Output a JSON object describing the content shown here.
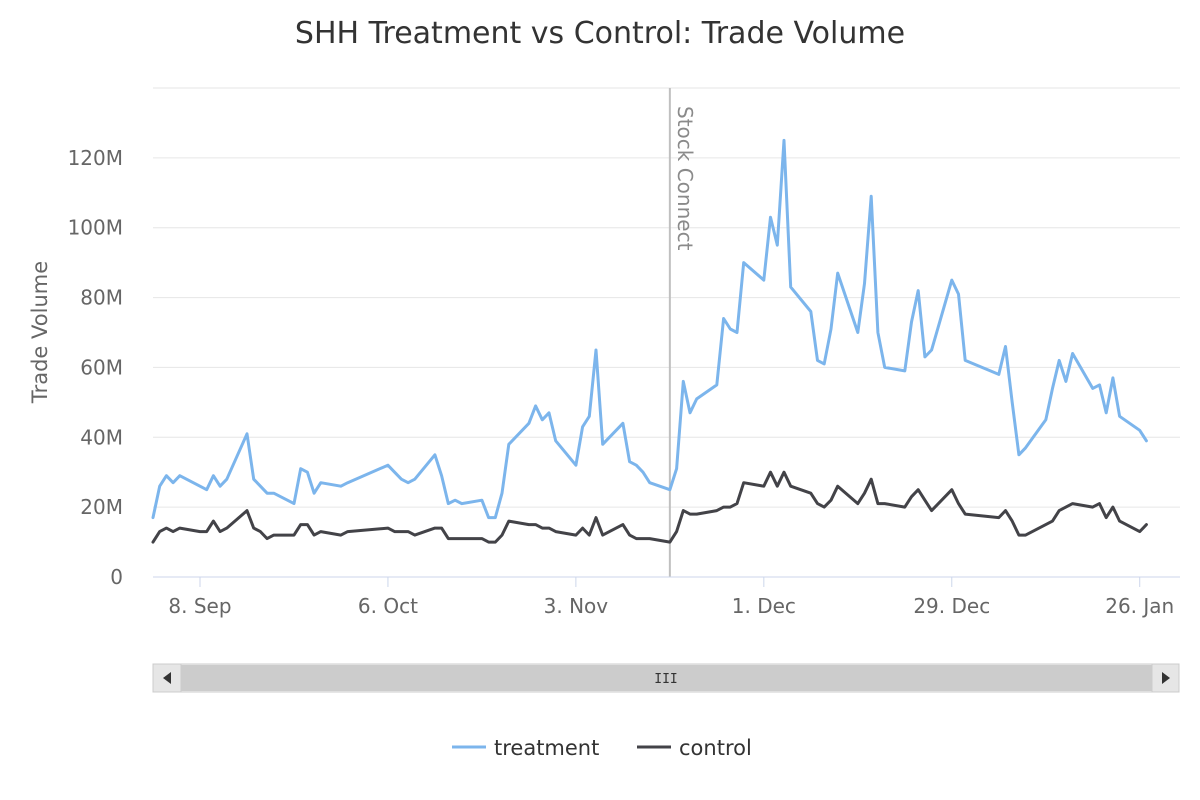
{
  "chart_data": {
    "type": "line",
    "title": "SHH Treatment vs Control: Trade Volume",
    "ylabel": "Trade Volume",
    "xlabel": "",
    "ylim": [
      0,
      140000000
    ],
    "xlim": [
      "2014-09-01",
      "2015-02-01"
    ],
    "y_ticks": [
      {
        "value": 0,
        "label": "0"
      },
      {
        "value": 20000000,
        "label": "20M"
      },
      {
        "value": 40000000,
        "label": "40M"
      },
      {
        "value": 60000000,
        "label": "60M"
      },
      {
        "value": 80000000,
        "label": "80M"
      },
      {
        "value": 100000000,
        "label": "100M"
      },
      {
        "value": 120000000,
        "label": "120M"
      }
    ],
    "x_ticks": [
      {
        "date": "2014-09-08",
        "label": "8. Sep"
      },
      {
        "date": "2014-10-06",
        "label": "6. Oct"
      },
      {
        "date": "2014-11-03",
        "label": "3. Nov"
      },
      {
        "date": "2014-12-01",
        "label": "1. Dec"
      },
      {
        "date": "2014-12-29",
        "label": "29. Dec"
      },
      {
        "date": "2015-01-26",
        "label": "26. Jan"
      }
    ],
    "plot_line": {
      "date": "2014-11-17",
      "label": "Stock Connect",
      "color": "#c0c0c0"
    },
    "grid": true,
    "legend_position": "bottom-center",
    "series": [
      {
        "name": "treatment",
        "color": "#7cb5ec",
        "points": [
          [
            "2014-09-01",
            17
          ],
          [
            "2014-09-02",
            26
          ],
          [
            "2014-09-03",
            29
          ],
          [
            "2014-09-04",
            27
          ],
          [
            "2014-09-05",
            29
          ],
          [
            "2014-09-08",
            26
          ],
          [
            "2014-09-09",
            25
          ],
          [
            "2014-09-10",
            29
          ],
          [
            "2014-09-11",
            26
          ],
          [
            "2014-09-12",
            28
          ],
          [
            "2014-09-15",
            41
          ],
          [
            "2014-09-16",
            28
          ],
          [
            "2014-09-17",
            26
          ],
          [
            "2014-09-18",
            24
          ],
          [
            "2014-09-19",
            24
          ],
          [
            "2014-09-22",
            21
          ],
          [
            "2014-09-23",
            31
          ],
          [
            "2014-09-24",
            30
          ],
          [
            "2014-09-25",
            24
          ],
          [
            "2014-09-26",
            27
          ],
          [
            "2014-09-29",
            26
          ],
          [
            "2014-09-30",
            27
          ],
          [
            "2014-10-06",
            32
          ],
          [
            "2014-10-07",
            30
          ],
          [
            "2014-10-08",
            28
          ],
          [
            "2014-10-09",
            27
          ],
          [
            "2014-10-10",
            28
          ],
          [
            "2014-10-13",
            35
          ],
          [
            "2014-10-14",
            29
          ],
          [
            "2014-10-15",
            21
          ],
          [
            "2014-10-16",
            22
          ],
          [
            "2014-10-17",
            21
          ],
          [
            "2014-10-20",
            22
          ],
          [
            "2014-10-21",
            17
          ],
          [
            "2014-10-22",
            17
          ],
          [
            "2014-10-23",
            24
          ],
          [
            "2014-10-24",
            38
          ],
          [
            "2014-10-27",
            44
          ],
          [
            "2014-10-28",
            49
          ],
          [
            "2014-10-29",
            45
          ],
          [
            "2014-10-30",
            47
          ],
          [
            "2014-10-31",
            39
          ],
          [
            "2014-11-03",
            32
          ],
          [
            "2014-11-04",
            43
          ],
          [
            "2014-11-05",
            46
          ],
          [
            "2014-11-06",
            65
          ],
          [
            "2014-11-07",
            38
          ],
          [
            "2014-11-10",
            44
          ],
          [
            "2014-11-11",
            33
          ],
          [
            "2014-11-12",
            32
          ],
          [
            "2014-11-13",
            30
          ],
          [
            "2014-11-14",
            27
          ],
          [
            "2014-11-17",
            25
          ],
          [
            "2014-11-18",
            31
          ],
          [
            "2014-11-19",
            56
          ],
          [
            "2014-11-20",
            47
          ],
          [
            "2014-11-21",
            51
          ],
          [
            "2014-11-24",
            55
          ],
          [
            "2014-11-25",
            74
          ],
          [
            "2014-11-26",
            71
          ],
          [
            "2014-11-27",
            70
          ],
          [
            "2014-11-28",
            90
          ],
          [
            "2014-12-01",
            85
          ],
          [
            "2014-12-02",
            103
          ],
          [
            "2014-12-03",
            95
          ],
          [
            "2014-12-04",
            125
          ],
          [
            "2014-12-05",
            83
          ],
          [
            "2014-12-08",
            76
          ],
          [
            "2014-12-09",
            62
          ],
          [
            "2014-12-10",
            61
          ],
          [
            "2014-12-11",
            71
          ],
          [
            "2014-12-12",
            87
          ],
          [
            "2014-12-15",
            70
          ],
          [
            "2014-12-16",
            84
          ],
          [
            "2014-12-17",
            109
          ],
          [
            "2014-12-18",
            70
          ],
          [
            "2014-12-19",
            60
          ],
          [
            "2014-12-22",
            59
          ],
          [
            "2014-12-23",
            73
          ],
          [
            "2014-12-24",
            82
          ],
          [
            "2014-12-25",
            63
          ],
          [
            "2014-12-26",
            65
          ],
          [
            "2014-12-29",
            85
          ],
          [
            "2014-12-30",
            81
          ],
          [
            "2014-12-31",
            62
          ],
          [
            "2015-01-05",
            58
          ],
          [
            "2015-01-06",
            66
          ],
          [
            "2015-01-07",
            50
          ],
          [
            "2015-01-08",
            35
          ],
          [
            "2015-01-09",
            37
          ],
          [
            "2015-01-12",
            45
          ],
          [
            "2015-01-13",
            54
          ],
          [
            "2015-01-14",
            62
          ],
          [
            "2015-01-15",
            56
          ],
          [
            "2015-01-16",
            64
          ],
          [
            "2015-01-19",
            54
          ],
          [
            "2015-01-20",
            55
          ],
          [
            "2015-01-21",
            47
          ],
          [
            "2015-01-22",
            57
          ],
          [
            "2015-01-23",
            46
          ],
          [
            "2015-01-26",
            42
          ],
          [
            "2015-01-27",
            39
          ]
        ]
      },
      {
        "name": "control",
        "color": "#434348",
        "points": [
          [
            "2014-09-01",
            10
          ],
          [
            "2014-09-02",
            13
          ],
          [
            "2014-09-03",
            14
          ],
          [
            "2014-09-04",
            13
          ],
          [
            "2014-09-05",
            14
          ],
          [
            "2014-09-08",
            13
          ],
          [
            "2014-09-09",
            13
          ],
          [
            "2014-09-10",
            16
          ],
          [
            "2014-09-11",
            13
          ],
          [
            "2014-09-12",
            14
          ],
          [
            "2014-09-15",
            19
          ],
          [
            "2014-09-16",
            14
          ],
          [
            "2014-09-17",
            13
          ],
          [
            "2014-09-18",
            11
          ],
          [
            "2014-09-19",
            12
          ],
          [
            "2014-09-22",
            12
          ],
          [
            "2014-09-23",
            15
          ],
          [
            "2014-09-24",
            15
          ],
          [
            "2014-09-25",
            12
          ],
          [
            "2014-09-26",
            13
          ],
          [
            "2014-09-29",
            12
          ],
          [
            "2014-09-30",
            13
          ],
          [
            "2014-10-06",
            14
          ],
          [
            "2014-10-07",
            13
          ],
          [
            "2014-10-08",
            13
          ],
          [
            "2014-10-09",
            13
          ],
          [
            "2014-10-10",
            12
          ],
          [
            "2014-10-13",
            14
          ],
          [
            "2014-10-14",
            14
          ],
          [
            "2014-10-15",
            11
          ],
          [
            "2014-10-16",
            11
          ],
          [
            "2014-10-17",
            11
          ],
          [
            "2014-10-20",
            11
          ],
          [
            "2014-10-21",
            10
          ],
          [
            "2014-10-22",
            10
          ],
          [
            "2014-10-23",
            12
          ],
          [
            "2014-10-24",
            16
          ],
          [
            "2014-10-27",
            15
          ],
          [
            "2014-10-28",
            15
          ],
          [
            "2014-10-29",
            14
          ],
          [
            "2014-10-30",
            14
          ],
          [
            "2014-10-31",
            13
          ],
          [
            "2014-11-03",
            12
          ],
          [
            "2014-11-04",
            14
          ],
          [
            "2014-11-05",
            12
          ],
          [
            "2014-11-06",
            17
          ],
          [
            "2014-11-07",
            12
          ],
          [
            "2014-11-10",
            15
          ],
          [
            "2014-11-11",
            12
          ],
          [
            "2014-11-12",
            11
          ],
          [
            "2014-11-13",
            11
          ],
          [
            "2014-11-14",
            11
          ],
          [
            "2014-11-17",
            10
          ],
          [
            "2014-11-18",
            13
          ],
          [
            "2014-11-19",
            19
          ],
          [
            "2014-11-20",
            18
          ],
          [
            "2014-11-21",
            18
          ],
          [
            "2014-11-24",
            19
          ],
          [
            "2014-11-25",
            20
          ],
          [
            "2014-11-26",
            20
          ],
          [
            "2014-11-27",
            21
          ],
          [
            "2014-11-28",
            27
          ],
          [
            "2014-12-01",
            26
          ],
          [
            "2014-12-02",
            30
          ],
          [
            "2014-12-03",
            26
          ],
          [
            "2014-12-04",
            30
          ],
          [
            "2014-12-05",
            26
          ],
          [
            "2014-12-08",
            24
          ],
          [
            "2014-12-09",
            21
          ],
          [
            "2014-12-10",
            20
          ],
          [
            "2014-12-11",
            22
          ],
          [
            "2014-12-12",
            26
          ],
          [
            "2014-12-15",
            21
          ],
          [
            "2014-12-16",
            24
          ],
          [
            "2014-12-17",
            28
          ],
          [
            "2014-12-18",
            21
          ],
          [
            "2014-12-19",
            21
          ],
          [
            "2014-12-22",
            20
          ],
          [
            "2014-12-23",
            23
          ],
          [
            "2014-12-24",
            25
          ],
          [
            "2014-12-25",
            22
          ],
          [
            "2014-12-26",
            19
          ],
          [
            "2014-12-29",
            25
          ],
          [
            "2014-12-30",
            21
          ],
          [
            "2014-12-31",
            18
          ],
          [
            "2015-01-05",
            17
          ],
          [
            "2015-01-06",
            19
          ],
          [
            "2015-01-07",
            16
          ],
          [
            "2015-01-08",
            12
          ],
          [
            "2015-01-09",
            12
          ],
          [
            "2015-01-12",
            15
          ],
          [
            "2015-01-13",
            16
          ],
          [
            "2015-01-14",
            19
          ],
          [
            "2015-01-15",
            20
          ],
          [
            "2015-01-16",
            21
          ],
          [
            "2015-01-19",
            20
          ],
          [
            "2015-01-20",
            21
          ],
          [
            "2015-01-21",
            17
          ],
          [
            "2015-01-22",
            20
          ],
          [
            "2015-01-23",
            16
          ],
          [
            "2015-01-26",
            13
          ],
          [
            "2015-01-27",
            15
          ]
        ]
      }
    ]
  },
  "navigator": {
    "grip_label": "III"
  },
  "colors": {
    "gridline": "#e6e6e6",
    "axis_line": "#ccd6eb",
    "scrollbar_track": "#f2f2f2",
    "scrollbar_thumb": "#cccccc"
  }
}
